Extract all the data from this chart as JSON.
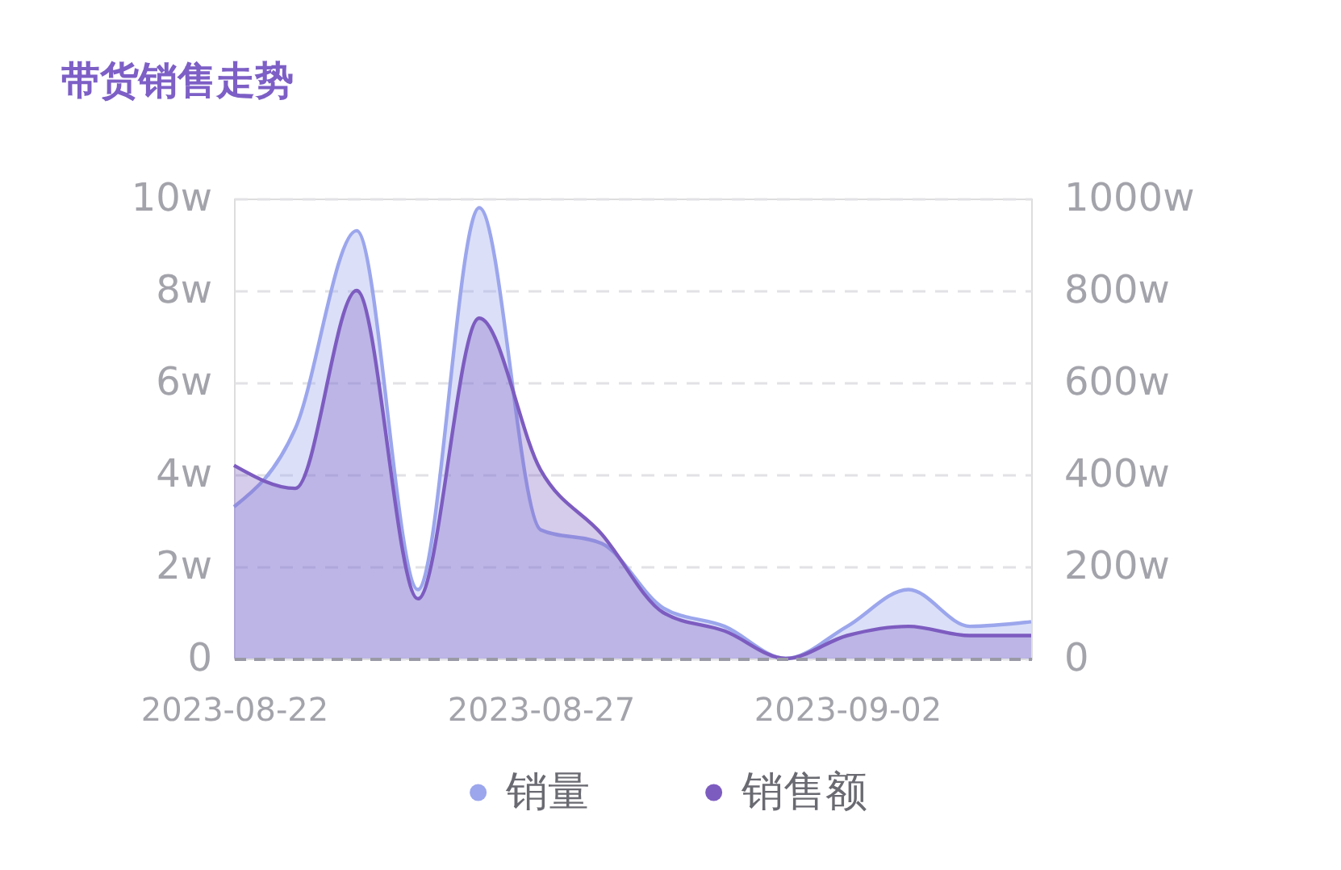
{
  "chart_data": {
    "type": "area",
    "title": "带货销售走势",
    "categories": [
      "2023-08-22",
      null,
      null,
      null,
      null,
      "2023-08-27",
      null,
      null,
      null,
      null,
      "2023-09-02",
      null,
      null,
      null
    ],
    "series": [
      {
        "name": "销量",
        "color": "#9ba6ec",
        "values": [
          3.3,
          5.0,
          9.3,
          1.5,
          9.8,
          2.8,
          2.5,
          1.1,
          0.7,
          0,
          0.7,
          1.5,
          0.7,
          0.8
        ]
      },
      {
        "name": "销售额",
        "color": "#7d5cc0",
        "axis": "y2",
        "values": [
          420,
          370,
          800,
          130,
          740,
          410,
          270,
          100,
          60,
          0,
          50,
          70,
          50,
          50
        ]
      }
    ],
    "ylim": [
      0,
      10
    ],
    "yticks": [
      0,
      {
        "value": 2,
        "label": "2w"
      },
      {
        "value": 4,
        "label": "4w"
      },
      {
        "value": 6,
        "label": "6w"
      },
      {
        "value": 8,
        "label": "8w"
      },
      {
        "value": 10,
        "label": "10w"
      }
    ],
    "y2lim": [
      0,
      1000
    ],
    "y2ticks": [
      0,
      {
        "value": 200,
        "label": "200w"
      },
      {
        "value": 400,
        "label": "400w"
      },
      {
        "value": 600,
        "label": "600w"
      },
      {
        "value": 800,
        "label": "800w"
      },
      {
        "value": 1000,
        "label": "1000w"
      }
    ],
    "grid": "y",
    "legend": "bottom"
  }
}
